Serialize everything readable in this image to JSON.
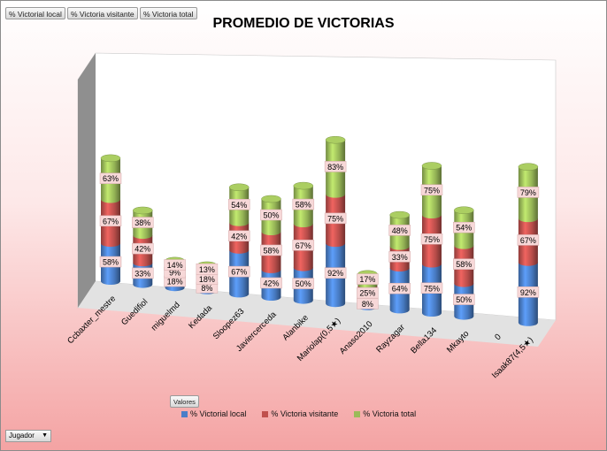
{
  "filters": [
    "% Victorial local",
    "% Victoria visitante",
    "% Victoria total"
  ],
  "valores_button": "Valores",
  "dropdown": {
    "label": "Jugador",
    "arrow": "▼"
  },
  "colors": {
    "local": "#4a7ec8",
    "visitante": "#c0504d",
    "total": "#9bbb59",
    "label_bg": "#f7d8d8"
  },
  "chart_data": {
    "type": "bar",
    "subtype": "stacked-3d-cylinder",
    "title": "PROMEDIO DE VICTORIAS",
    "categories": [
      "Ccbaxter_mestre",
      "Guedifiol",
      "miguelmd",
      "Kedada",
      "Sloopez63",
      "Javiercerceda",
      "Alanbike",
      "Mariolap(0,5★)",
      "Anaso2010",
      "Rayzagar",
      "Bella134",
      "Mkayto",
      "0",
      "Isaak87(4,5★)"
    ],
    "series": [
      {
        "name": "% Victorial local",
        "values": [
          "58%",
          "33%",
          "18%",
          "8%",
          "67%",
          "42%",
          "50%",
          "92%",
          "8%",
          "64%",
          "75%",
          "50%",
          "",
          "92%"
        ]
      },
      {
        "name": "% Victoria visitante",
        "values": [
          "67%",
          "42%",
          "9%",
          "18%",
          "42%",
          "58%",
          "67%",
          "75%",
          "25%",
          "33%",
          "75%",
          "58%",
          "",
          "67%"
        ]
      },
      {
        "name": "% Victoria total",
        "values": [
          "63%",
          "38%",
          "14%",
          "13%",
          "54%",
          "50%",
          "58%",
          "83%",
          "17%",
          "48%",
          "75%",
          "54%",
          "",
          "79%"
        ]
      }
    ],
    "legend_position": "bottom",
    "grid": false
  }
}
